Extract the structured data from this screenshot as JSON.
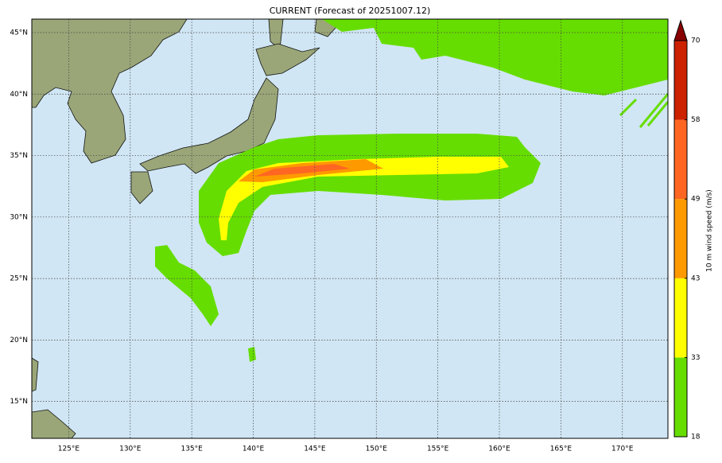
{
  "title": "CURRENT (Forecast of 20251007.12)",
  "map": {
    "lonlim": [
      122,
      173.7
    ],
    "latlim": [
      12,
      46.1
    ],
    "lonticks": [
      {
        "value": 125,
        "label": "125°E"
      },
      {
        "value": 130,
        "label": "130°E"
      },
      {
        "value": 135,
        "label": "135°E"
      },
      {
        "value": 140,
        "label": "140°E"
      },
      {
        "value": 145,
        "label": "145°E"
      },
      {
        "value": 150,
        "label": "150°E"
      },
      {
        "value": 155,
        "label": "155°E"
      },
      {
        "value": 160,
        "label": "160°E"
      },
      {
        "value": 165,
        "label": "165°E"
      },
      {
        "value": 170,
        "label": "170°E"
      }
    ],
    "latticks": [
      {
        "value": 15,
        "label": "15°N"
      },
      {
        "value": 20,
        "label": "20°N"
      },
      {
        "value": 25,
        "label": "25°N"
      },
      {
        "value": 30,
        "label": "30°N"
      },
      {
        "value": 35,
        "label": "35°N"
      },
      {
        "value": 40,
        "label": "40°N"
      },
      {
        "value": 45,
        "label": "45°N"
      }
    ]
  },
  "colorbar": {
    "label": "10 m wind speed (m/s)",
    "ticks": [
      18,
      33,
      43,
      49,
      58,
      70
    ],
    "colors": [
      "#66dd00",
      "#ffff00",
      "#ff9900",
      "#ff6622",
      "#cc2200",
      "#880000"
    ]
  }
}
